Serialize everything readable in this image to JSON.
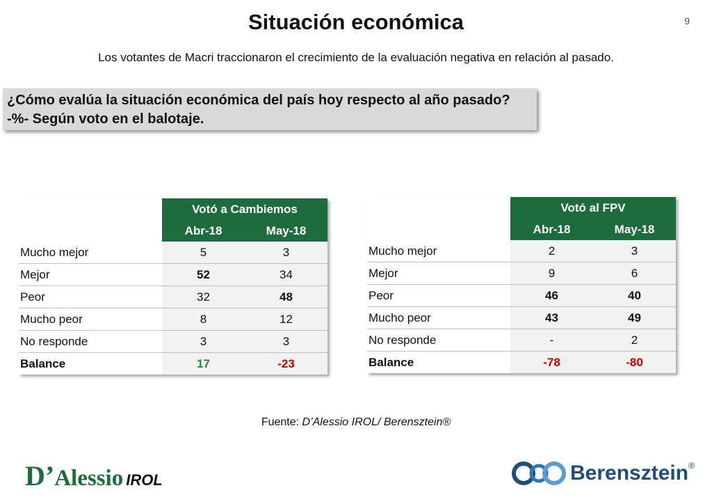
{
  "header": {
    "title": "Situación económica",
    "page_number": "9",
    "subtitle": "Los votantes de Macri traccionaron el crecimiento de la evaluación negativa en relación al pasado."
  },
  "question": {
    "line1": "¿Cómo evalúa la situación económica del país hoy respecto al año pasado?",
    "line2": "-%- Según voto en el balotaje."
  },
  "tables": [
    {
      "group": "Votó a Cambiemos",
      "columns": [
        "Abr-18",
        "May-18"
      ],
      "rows": [
        {
          "label": "Mucho mejor",
          "values": [
            "5",
            "3"
          ]
        },
        {
          "label": "Mejor",
          "values": [
            "52",
            "34"
          ]
        },
        {
          "label": "Peor",
          "values": [
            "32",
            "48"
          ]
        },
        {
          "label": "Mucho peor",
          "values": [
            "8",
            "12"
          ]
        },
        {
          "label": "No responde",
          "values": [
            "3",
            "3"
          ]
        },
        {
          "label": "Balance",
          "values": [
            "17",
            "-23"
          ]
        }
      ]
    },
    {
      "group": "Votó al FPV",
      "columns": [
        "Abr-18",
        "May-18"
      ],
      "rows": [
        {
          "label": "Mucho mejor",
          "values": [
            "2",
            "3"
          ]
        },
        {
          "label": "Mejor",
          "values": [
            "9",
            "6"
          ]
        },
        {
          "label": "Peor",
          "values": [
            "46",
            "40"
          ]
        },
        {
          "label": "Mucho peor",
          "values": [
            "43",
            "49"
          ]
        },
        {
          "label": "No responde",
          "values": [
            "-",
            "2"
          ]
        },
        {
          "label": "Balance",
          "values": [
            "-78",
            "-80"
          ]
        }
      ]
    }
  ],
  "source": {
    "prefix": "Fuente: ",
    "text": "D’Alessio IROL/ Berensztein®"
  },
  "logos": {
    "left_main_initial": "D’",
    "left_main_rest": "Alessio",
    "left_suffix": "IROL",
    "right_name": "Berensztein",
    "right_reg": "®"
  },
  "colors": {
    "header_green": "#1e6b3c",
    "positive_green": "#1e8a3c",
    "negative_red": "#c00000",
    "question_bg": "#d9d9d9"
  }
}
